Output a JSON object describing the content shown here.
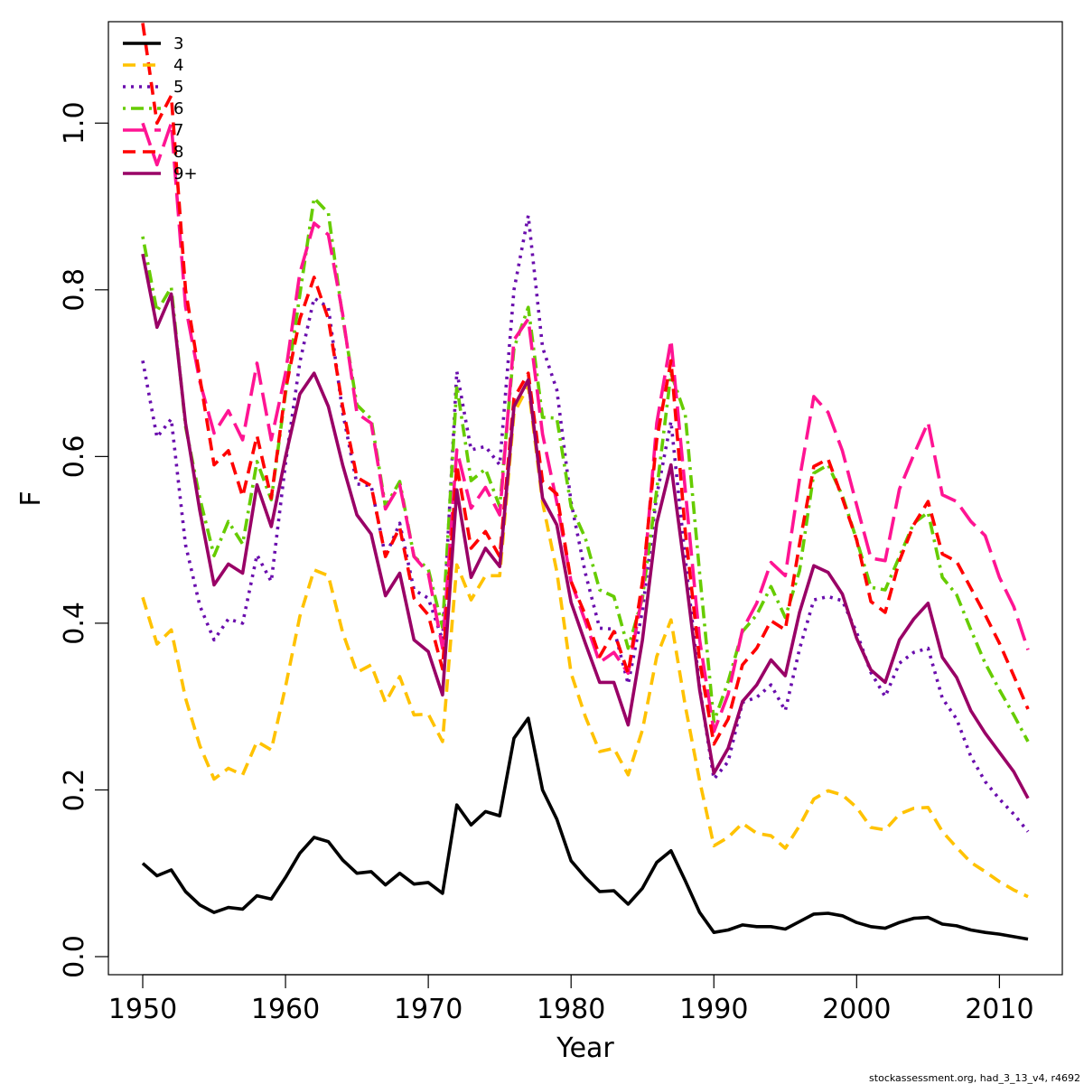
{
  "chart_data": {
    "type": "line",
    "title": "",
    "xlabel": "Year",
    "ylabel": "F",
    "xlim": [
      1950,
      2012
    ],
    "ylim": [
      0,
      1.1
    ],
    "x_ticks": [
      1950,
      1960,
      1970,
      1980,
      1990,
      2000,
      2010
    ],
    "y_ticks": [
      0.0,
      0.2,
      0.4,
      0.6,
      0.8,
      1.0
    ],
    "y_tick_labels": [
      "0.0",
      "0.2",
      "0.4",
      "0.6",
      "0.8",
      "1.0"
    ],
    "grid": false,
    "legend_position": "top-left",
    "x": [
      1950,
      1951,
      1952,
      1953,
      1954,
      1955,
      1956,
      1957,
      1958,
      1959,
      1960,
      1961,
      1962,
      1963,
      1964,
      1965,
      1966,
      1967,
      1968,
      1969,
      1970,
      1971,
      1972,
      1973,
      1974,
      1975,
      1976,
      1977,
      1978,
      1979,
      1980,
      1981,
      1982,
      1983,
      1984,
      1985,
      1986,
      1987,
      1988,
      1989,
      1990,
      1991,
      1992,
      1993,
      1994,
      1995,
      1996,
      1997,
      1998,
      1999,
      2000,
      2001,
      2002,
      2003,
      2004,
      2005,
      2006,
      2007,
      2008,
      2009,
      2010,
      2011,
      2012
    ],
    "series": [
      {
        "name": "3",
        "color": "#000000",
        "dash": "solid",
        "values": [
          0.112,
          0.097,
          0.104,
          0.078,
          0.062,
          0.053,
          0.059,
          0.057,
          0.073,
          0.069,
          0.095,
          0.124,
          0.143,
          0.138,
          0.116,
          0.1,
          0.102,
          0.086,
          0.1,
          0.087,
          0.089,
          0.076,
          0.182,
          0.158,
          0.174,
          0.169,
          0.262,
          0.286,
          0.2,
          0.165,
          0.115,
          0.095,
          0.078,
          0.079,
          0.063,
          0.082,
          0.113,
          0.127,
          0.091,
          0.053,
          0.029,
          0.032,
          0.038,
          0.036,
          0.036,
          0.033,
          0.042,
          0.051,
          0.052,
          0.049,
          0.041,
          0.036,
          0.034,
          0.041,
          0.046,
          0.047,
          0.039,
          0.037,
          0.032,
          0.029,
          0.027,
          0.024,
          0.021
        ]
      },
      {
        "name": "4",
        "color": "#ffc200",
        "dash": "dashed",
        "values": [
          0.431,
          0.375,
          0.392,
          0.31,
          0.253,
          0.213,
          0.226,
          0.218,
          0.258,
          0.248,
          0.324,
          0.408,
          0.464,
          0.457,
          0.389,
          0.341,
          0.35,
          0.305,
          0.336,
          0.29,
          0.291,
          0.258,
          0.47,
          0.428,
          0.457,
          0.457,
          0.652,
          0.685,
          0.545,
          0.462,
          0.34,
          0.288,
          0.246,
          0.25,
          0.218,
          0.272,
          0.36,
          0.404,
          0.301,
          0.211,
          0.133,
          0.143,
          0.16,
          0.148,
          0.145,
          0.13,
          0.157,
          0.189,
          0.199,
          0.194,
          0.179,
          0.155,
          0.152,
          0.171,
          0.178,
          0.179,
          0.15,
          0.131,
          0.113,
          0.102,
          0.09,
          0.08,
          0.072
        ]
      },
      {
        "name": "5",
        "color": "#6a0dad",
        "dash": "dotted",
        "values": [
          0.715,
          0.623,
          0.645,
          0.494,
          0.421,
          0.38,
          0.405,
          0.4,
          0.482,
          0.45,
          0.592,
          0.713,
          0.79,
          0.779,
          0.653,
          0.567,
          0.565,
          0.48,
          0.52,
          0.44,
          0.43,
          0.38,
          0.702,
          0.608,
          0.612,
          0.59,
          0.8,
          0.889,
          0.731,
          0.68,
          0.545,
          0.46,
          0.394,
          0.393,
          0.327,
          0.415,
          0.553,
          0.642,
          0.478,
          0.323,
          0.213,
          0.234,
          0.305,
          0.311,
          0.326,
          0.295,
          0.369,
          0.428,
          0.432,
          0.427,
          0.389,
          0.341,
          0.312,
          0.352,
          0.365,
          0.37,
          0.31,
          0.285,
          0.24,
          0.21,
          0.189,
          0.171,
          0.15
        ]
      },
      {
        "name": "6",
        "color": "#66cc00",
        "dash": "dotdash",
        "values": [
          0.864,
          0.774,
          0.803,
          0.636,
          0.55,
          0.481,
          0.522,
          0.495,
          0.594,
          0.548,
          0.676,
          0.794,
          0.91,
          0.892,
          0.767,
          0.662,
          0.645,
          0.54,
          0.57,
          0.48,
          0.465,
          0.395,
          0.685,
          0.571,
          0.585,
          0.54,
          0.73,
          0.779,
          0.647,
          0.646,
          0.54,
          0.502,
          0.44,
          0.432,
          0.37,
          0.43,
          0.56,
          0.7,
          0.65,
          0.46,
          0.282,
          0.33,
          0.39,
          0.41,
          0.444,
          0.407,
          0.463,
          0.58,
          0.59,
          0.553,
          0.5,
          0.443,
          0.44,
          0.48,
          0.52,
          0.533,
          0.455,
          0.434,
          0.392,
          0.352,
          0.32,
          0.29,
          0.258
        ]
      },
      {
        "name": "7",
        "color": "#ff1493",
        "dash": "longdash",
        "values": [
          1.0,
          0.95,
          1.0,
          0.78,
          0.69,
          0.628,
          0.655,
          0.62,
          0.712,
          0.62,
          0.7,
          0.82,
          0.88,
          0.866,
          0.771,
          0.652,
          0.64,
          0.537,
          0.566,
          0.48,
          0.46,
          0.37,
          0.608,
          0.538,
          0.563,
          0.53,
          0.74,
          0.765,
          0.627,
          0.545,
          0.45,
          0.402,
          0.353,
          0.365,
          0.34,
          0.435,
          0.64,
          0.74,
          0.56,
          0.38,
          0.27,
          0.315,
          0.392,
          0.424,
          0.473,
          0.457,
          0.573,
          0.672,
          0.653,
          0.607,
          0.542,
          0.478,
          0.475,
          0.561,
          0.602,
          0.641,
          0.554,
          0.546,
          0.522,
          0.505,
          0.455,
          0.42,
          0.368
        ]
      },
      {
        "name": "8",
        "color": "#ff0000",
        "dash": "dashed",
        "values": [
          1.12,
          1.0,
          1.033,
          0.8,
          0.695,
          0.59,
          0.607,
          0.552,
          0.625,
          0.55,
          0.68,
          0.765,
          0.815,
          0.765,
          0.66,
          0.575,
          0.565,
          0.48,
          0.515,
          0.43,
          0.41,
          0.345,
          0.59,
          0.49,
          0.51,
          0.48,
          0.67,
          0.7,
          0.57,
          0.555,
          0.45,
          0.41,
          0.36,
          0.39,
          0.34,
          0.45,
          0.62,
          0.715,
          0.51,
          0.355,
          0.255,
          0.285,
          0.35,
          0.37,
          0.403,
          0.392,
          0.495,
          0.588,
          0.597,
          0.55,
          0.5,
          0.426,
          0.413,
          0.475,
          0.518,
          0.546,
          0.483,
          0.474,
          0.442,
          0.41,
          0.376,
          0.337,
          0.297
        ]
      },
      {
        "name": "9+",
        "color": "#990066",
        "dash": "solid",
        "values": [
          0.843,
          0.755,
          0.795,
          0.64,
          0.535,
          0.446,
          0.471,
          0.46,
          0.566,
          0.516,
          0.6,
          0.675,
          0.7,
          0.66,
          0.59,
          0.53,
          0.507,
          0.433,
          0.46,
          0.38,
          0.366,
          0.314,
          0.56,
          0.455,
          0.49,
          0.468,
          0.66,
          0.692,
          0.55,
          0.518,
          0.425,
          0.376,
          0.329,
          0.329,
          0.278,
          0.38,
          0.52,
          0.59,
          0.46,
          0.32,
          0.22,
          0.25,
          0.306,
          0.326,
          0.356,
          0.337,
          0.413,
          0.469,
          0.461,
          0.435,
          0.382,
          0.344,
          0.329,
          0.38,
          0.405,
          0.424,
          0.359,
          0.335,
          0.295,
          0.268,
          0.245,
          0.222,
          0.19
        ]
      }
    ]
  },
  "footer_text": "stockassessment.org, had_3_13_v4, r4692"
}
